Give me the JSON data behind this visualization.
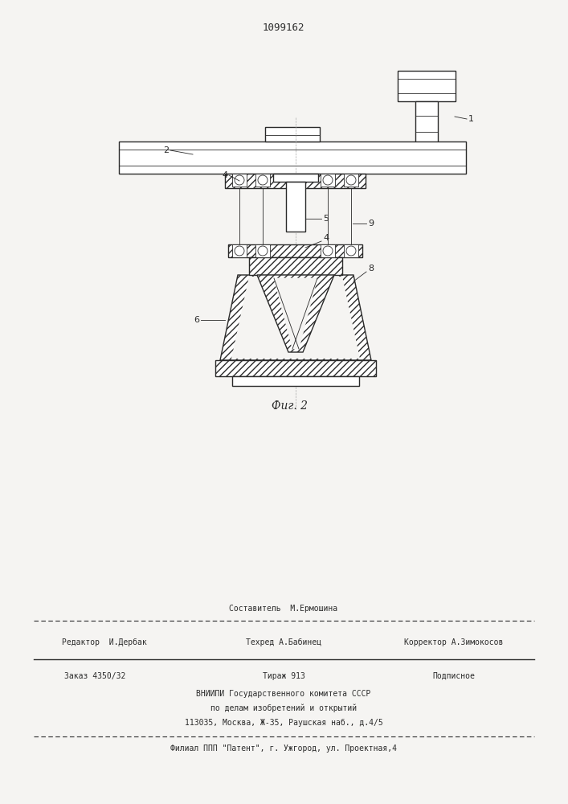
{
  "patent_number": "1099162",
  "fig_label": "Фиг. 2",
  "bg_color": "#f5f4f2",
  "line_color": "#2a2a2a",
  "footer_line0": "Составитель  М.Ермошина",
  "footer_line1_left": "Редактор  И.Дербак",
  "footer_line1_center": "Техред А.Бабинец",
  "footer_line1_right": "Корректор А.Зимокосов",
  "footer_order": "Заказ 4350/32",
  "footer_tirazh": "Тираж 913",
  "footer_podpisnoe": "Подписное",
  "footer_vnipi": "ВНИИПИ Государственного комитета СССР",
  "footer_po": "по делам изобретений и открытий",
  "footer_addr": "113035, Москва, Ж-35, Раушская наб., д.4/5",
  "footer_filial": "Филиал ППП \"Патент\", г. Ужгород, ул. Проектная,4"
}
